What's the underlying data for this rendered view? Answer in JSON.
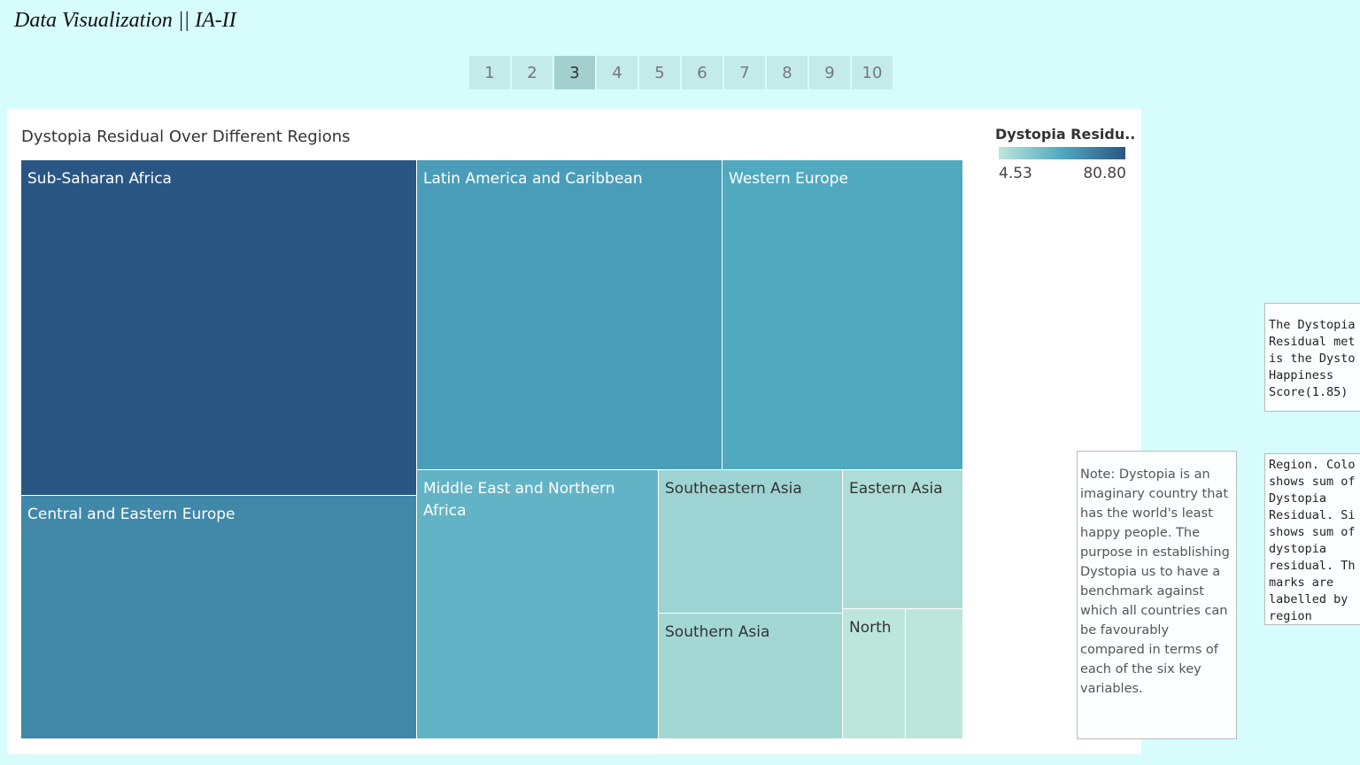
{
  "app_title": "Data Visualization || IA-II",
  "pages": [
    "1",
    "2",
    "3",
    "4",
    "5",
    "6",
    "7",
    "8",
    "9",
    "10"
  ],
  "active_page_index": 2,
  "chart_data": {
    "type": "treemap",
    "title": "Dystopia Residual Over Different Regions",
    "legend": {
      "title": "Dystopia Residu..",
      "min_label": "4.53",
      "max_label": "80.80",
      "min": 4.53,
      "max": 80.8,
      "colors": [
        "#bde6da",
        "#4fa8c0",
        "#2a5684"
      ]
    },
    "series": [
      {
        "label": "Sub-Saharan Africa",
        "value": 80.8
      },
      {
        "label": "Central and Eastern Europe",
        "value": 57.8
      },
      {
        "label": "Latin America and Caribbean",
        "value": 48.0
      },
      {
        "label": "Western Europe",
        "value": 42.0
      },
      {
        "label": "Middle East and Northern Africa",
        "value": 36.0
      },
      {
        "label": "Southeastern Asia",
        "value": 15.5
      },
      {
        "label": "Southern Asia",
        "value": 13.5
      },
      {
        "label": "Eastern Asia",
        "value": 10.0
      },
      {
        "label": "North",
        "value": 4.6
      },
      {
        "label": "",
        "value": 4.53
      }
    ]
  },
  "note_text": "Note: Dystopia is an imaginary country that has the world's least happy people. The purpose in establishing Dystopia us to have a benchmark against which all countries can be favourably compared in terms of each of the six key variables.",
  "side_box_1_lines": [
    "The Dystopia",
    "Residual met",
    "is the Dysto",
    "Happiness",
    "Score(1.85)"
  ],
  "side_box_2_lines": [
    "Region. Colo",
    "shows sum of",
    "Dystopia",
    "Residual. Si",
    "shows sum of",
    "dystopia",
    "residual. Th",
    "marks are",
    "labelled by",
    "region"
  ]
}
